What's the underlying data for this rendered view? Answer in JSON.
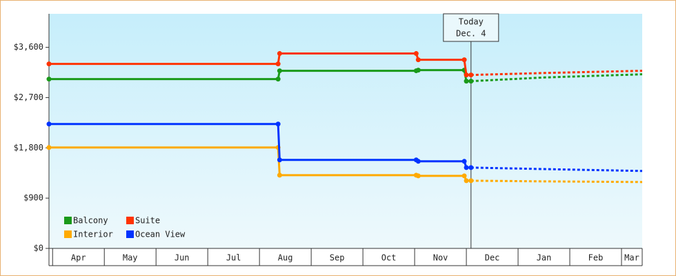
{
  "chart_data": {
    "type": "line",
    "categories": [
      "Apr",
      "May",
      "Jun",
      "Jul",
      "Aug",
      "Sep",
      "Oct",
      "Nov",
      "Dec",
      "Jan",
      "Feb",
      "Mar"
    ],
    "xlim": [
      -0.07,
      11.4
    ],
    "ylim": [
      0,
      4200
    ],
    "yticks": [
      {
        "value": 0,
        "label": "$0"
      },
      {
        "value": 900,
        "label": "$900"
      },
      {
        "value": 1800,
        "label": "$1,800"
      },
      {
        "value": 2700,
        "label": "$2,700"
      },
      {
        "value": 3600,
        "label": "$3,600"
      }
    ],
    "annotation": {
      "x": 8.09,
      "lines": [
        "Today",
        "Dec. 4"
      ]
    },
    "legend": "lower left",
    "series": [
      {
        "name": "Balcony",
        "color": "#1a9a1a",
        "x": [
          -0.07,
          4.36,
          4.39,
          7.03,
          7.07,
          7.96,
          8.0,
          8.09
        ],
        "values": [
          3031,
          3031,
          3180,
          3180,
          3192,
          3192,
          2994,
          2994
        ],
        "forecast": {
          "x": [
            8.09,
            9.5,
            11.4
          ],
          "values": [
            2994,
            3060,
            3117
          ]
        }
      },
      {
        "name": "Suite",
        "color": "#ff3300",
        "x": [
          -0.07,
          4.36,
          4.39,
          7.03,
          7.07,
          7.96,
          8.0,
          8.09
        ],
        "values": [
          3303,
          3303,
          3489,
          3489,
          3377,
          3377,
          3105,
          3105
        ],
        "forecast": {
          "x": [
            8.09,
            9.5,
            11.4
          ],
          "values": [
            3105,
            3140,
            3180
          ]
        }
      },
      {
        "name": "Interior",
        "color": "#ffaa00",
        "x": [
          -0.07,
          4.36,
          4.39,
          7.03,
          7.07,
          7.96,
          8.0,
          8.09
        ],
        "values": [
          1806,
          1806,
          1311,
          1311,
          1299,
          1299,
          1212,
          1212
        ],
        "forecast": {
          "x": [
            8.09,
            9.5,
            11.4
          ],
          "values": [
            1212,
            1200,
            1188
          ]
        }
      },
      {
        "name": "Ocean View",
        "color": "#0033ff",
        "x": [
          -0.07,
          4.36,
          4.39,
          7.03,
          7.07,
          7.96,
          8.0,
          8.09
        ],
        "values": [
          2227,
          2227,
          1584,
          1584,
          1559,
          1559,
          1447,
          1447
        ],
        "forecast": {
          "x": [
            8.09,
            9.5,
            11.4
          ],
          "values": [
            1447,
            1420,
            1386
          ]
        }
      }
    ]
  }
}
